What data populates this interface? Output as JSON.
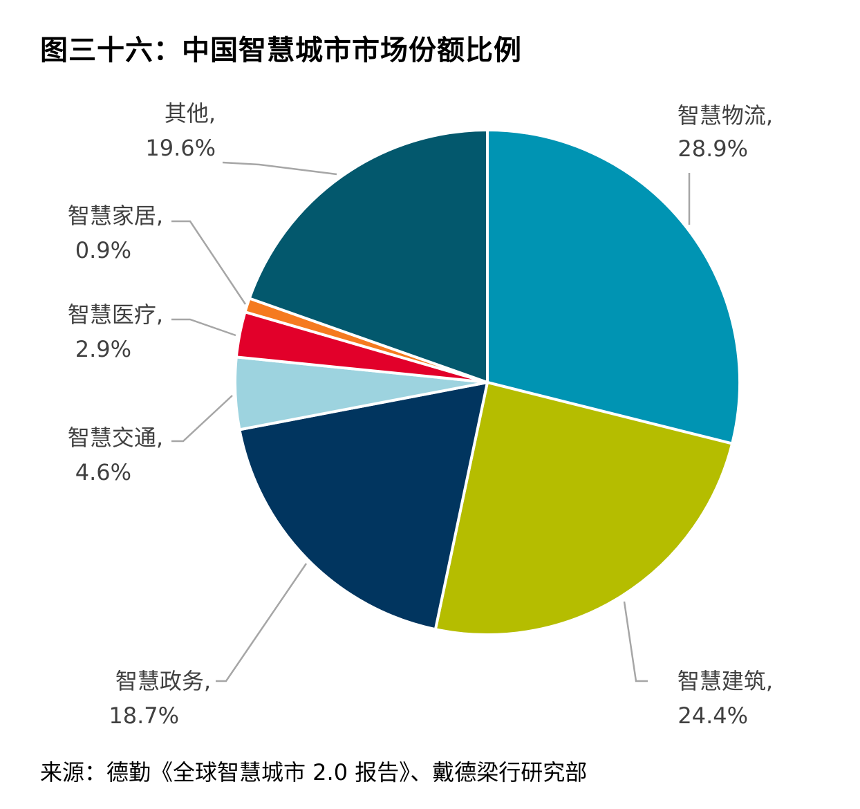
{
  "chart_data": {
    "type": "pie",
    "title": "图三十六：中国智慧城市市场份额比例",
    "slices": [
      {
        "name": "智慧物流",
        "value": 28.9,
        "value_label": "28.9%",
        "color": "#0094B3"
      },
      {
        "name": "智慧建筑",
        "value": 24.4,
        "value_label": "24.4%",
        "color": "#B5BD00"
      },
      {
        "name": "智慧政务",
        "value": 18.7,
        "value_label": "18.7%",
        "color": "#01355F"
      },
      {
        "name": "智慧交通",
        "value": 4.6,
        "value_label": "4.6%",
        "color": "#9DD3DF"
      },
      {
        "name": "智慧医疗",
        "value": 2.9,
        "value_label": "2.9%",
        "color": "#E2002A"
      },
      {
        "name": "智慧家居",
        "value": 0.9,
        "value_label": "0.9%",
        "color": "#F57A1F"
      },
      {
        "name": "其他",
        "value": 19.6,
        "value_label": "19.6%",
        "color": "#03586D"
      }
    ],
    "source": "来源：德勤《全球智慧城市 2.0 报告》、戴德梁行研究部"
  }
}
